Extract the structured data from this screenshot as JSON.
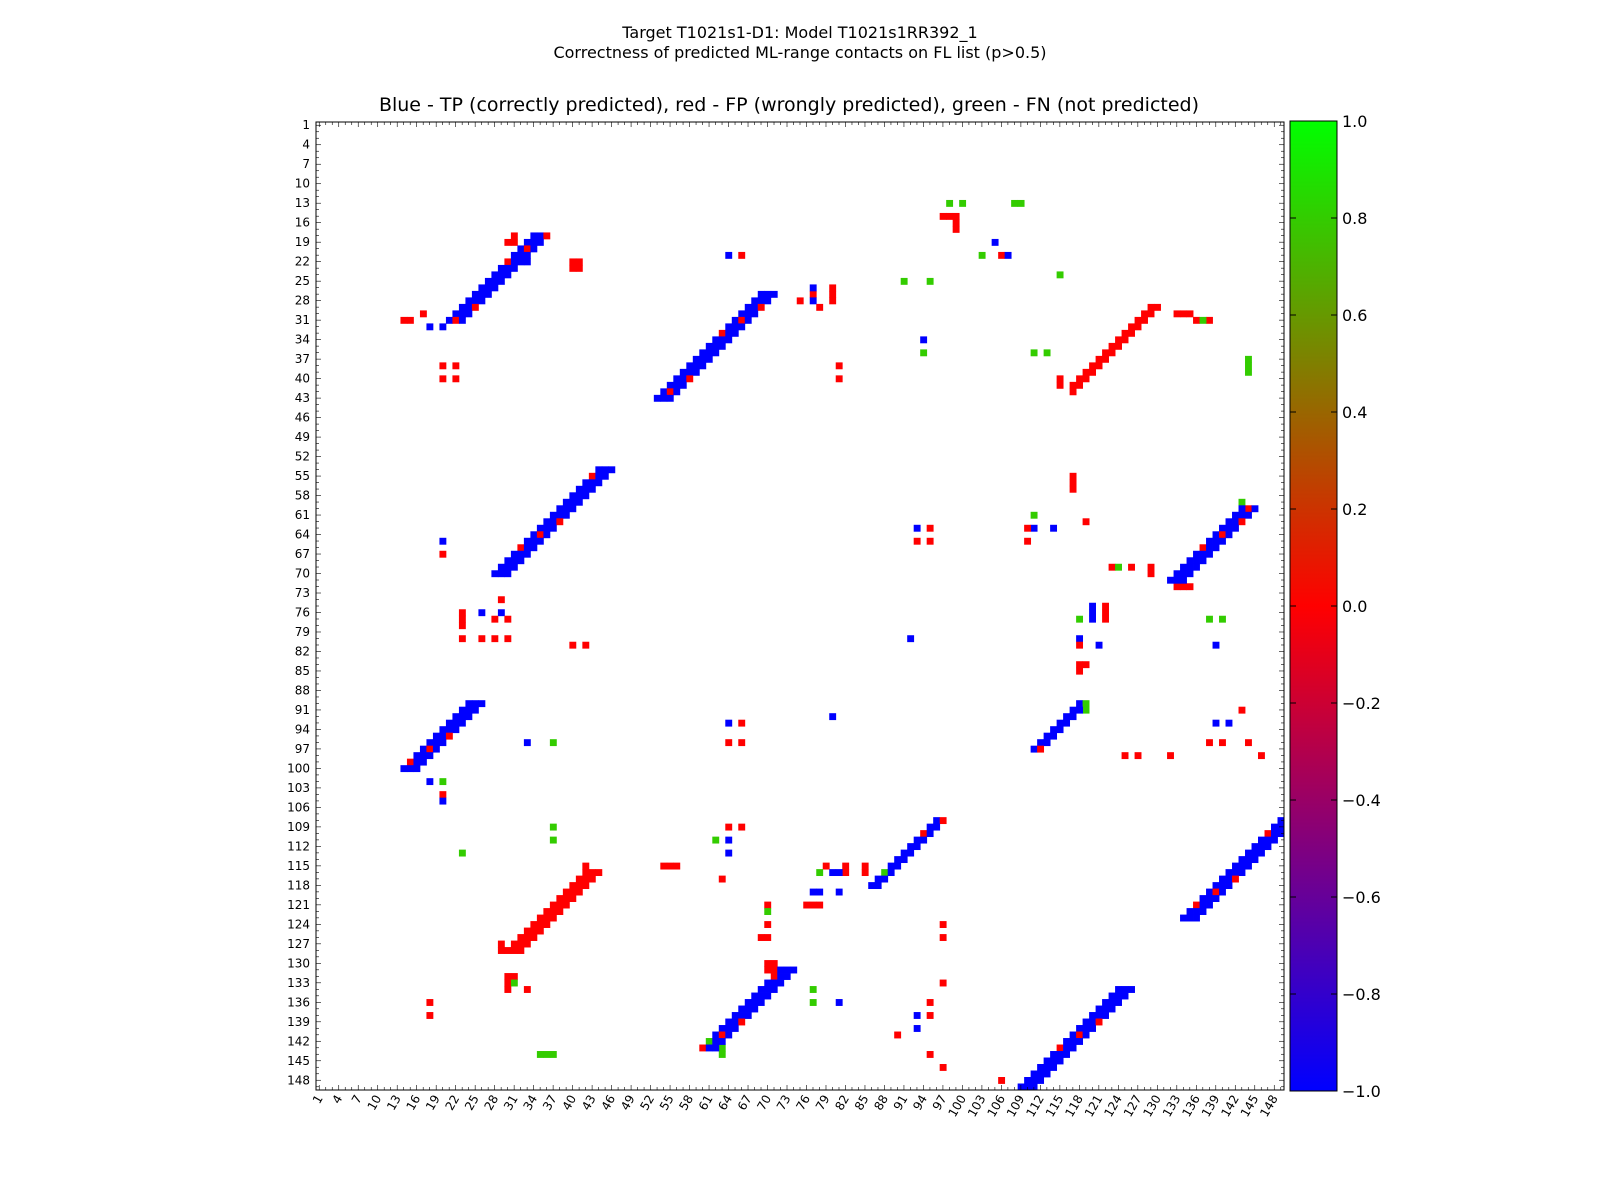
{
  "chart_data": {
    "type": "heatmap",
    "suptitle_line1": "Target T1021s1-D1: Model T1021s1RR392_1",
    "suptitle_line2": "Correctness of predicted ML-range contacts on FL list (p>0.5)",
    "title": "Blue - TP (correctly predicted), red - FP (wrongly predicted), green - FN (not predicted)",
    "n_residues": 149,
    "x_range": [
      1,
      149
    ],
    "y_range": [
      1,
      149
    ],
    "tick_values": [
      1,
      4,
      7,
      10,
      13,
      16,
      19,
      22,
      25,
      28,
      31,
      34,
      37,
      40,
      43,
      46,
      49,
      52,
      55,
      58,
      61,
      64,
      67,
      70,
      73,
      76,
      79,
      82,
      85,
      88,
      91,
      94,
      97,
      100,
      103,
      106,
      109,
      112,
      115,
      118,
      121,
      124,
      127,
      130,
      133,
      136,
      139,
      142,
      145,
      148
    ],
    "tick_labels": [
      "1",
      "4",
      "7",
      "10",
      "13",
      "16",
      "19",
      "22",
      "25",
      "28",
      "31",
      "34",
      "37",
      "40",
      "43",
      "46",
      "49",
      "52",
      "55",
      "58",
      "61",
      "64",
      "67",
      "70",
      "73",
      "76",
      "79",
      "82",
      "85",
      "88",
      "91",
      "94",
      "97",
      "100",
      "103",
      "106",
      "109",
      "112",
      "115",
      "118",
      "121",
      "124",
      "127",
      "130",
      "133",
      "136",
      "139",
      "142",
      "145",
      "148"
    ],
    "colorbar": {
      "range": [
        -1.0,
        1.0
      ],
      "ticks": [
        1.0,
        0.8,
        0.6,
        0.4,
        0.2,
        0.0,
        -0.2,
        -0.4,
        -0.6,
        -0.8,
        -1.0
      ],
      "tick_labels": [
        "1.0",
        "0.8",
        "0.6",
        "0.4",
        "0.2",
        "0.0",
        "−0.2",
        "−0.4",
        "−0.6",
        "−0.8",
        "−1.0"
      ],
      "colormap": [
        "#0000ff",
        "#ff0000",
        "#00ff00"
      ]
    },
    "categories": {
      "TP": {
        "value": -1.0,
        "color": "#0000ff"
      },
      "FP": {
        "value": 0.0,
        "color": "#ff0000"
      },
      "FN": {
        "value": 1.0,
        "color": "#33cc00"
      }
    },
    "diagonal_bands": [
      {
        "i_from": 18,
        "i_to": 31,
        "j_start": 34,
        "len": 3,
        "value": -1,
        "jitter_value": 0
      },
      {
        "i_from": 27,
        "i_to": 43,
        "j_start": 69,
        "len": 3,
        "value": -1,
        "jitter_value": 0
      },
      {
        "i_from": 29,
        "i_to": 41,
        "j_start": 129,
        "len": 2,
        "value": 0,
        "jitter_value": 0
      },
      {
        "i_from": 54,
        "i_to": 70,
        "j_start": 44,
        "len": 3,
        "value": -1,
        "jitter_value": 0
      },
      {
        "i_from": 60,
        "i_to": 71,
        "j_start": 143,
        "len": 3,
        "value": -1,
        "jitter_value": 0
      },
      {
        "i_from": 90,
        "i_to": 100,
        "j_start": 24,
        "len": 3,
        "value": -1,
        "jitter_value": 0
      },
      {
        "i_from": 90,
        "i_to": 97,
        "j_start": 118,
        "len": 2,
        "value": -1,
        "jitter_value": 0
      },
      {
        "i_from": 108,
        "i_to": 118,
        "j_start": 96,
        "len": 2,
        "value": -1,
        "jitter_value": 0
      },
      {
        "i_from": 107,
        "i_to": 123,
        "j_start": 150,
        "len": 3,
        "value": -1,
        "jitter_value": 0
      },
      {
        "i_from": 116,
        "i_to": 128,
        "j_start": 42,
        "len": 3,
        "value": 0,
        "jitter_value": 0
      },
      {
        "i_from": 131,
        "i_to": 143,
        "j_start": 72,
        "len": 3,
        "value": -1,
        "jitter_value": 0
      },
      {
        "i_from": 134,
        "i_to": 149,
        "j_start": 124,
        "len": 3,
        "value": -1,
        "jitter_value": 0
      }
    ],
    "cells": [
      [
        13,
        98,
        1
      ],
      [
        13,
        100,
        1
      ],
      [
        13,
        108,
        1
      ],
      [
        13,
        109,
        1
      ],
      [
        15,
        97,
        0
      ],
      [
        15,
        98,
        0
      ],
      [
        15,
        99,
        0
      ],
      [
        16,
        99,
        0
      ],
      [
        17,
        99,
        0
      ],
      [
        19,
        105,
        -1
      ],
      [
        19,
        31,
        0
      ],
      [
        18,
        31,
        0
      ],
      [
        19,
        30,
        0
      ],
      [
        21,
        64,
        -1
      ],
      [
        21,
        66,
        0
      ],
      [
        21,
        103,
        1
      ],
      [
        21,
        106,
        0
      ],
      [
        21,
        107,
        -1
      ],
      [
        22,
        33,
        -1
      ],
      [
        22,
        40,
        0
      ],
      [
        22,
        41,
        0
      ],
      [
        23,
        40,
        0
      ],
      [
        23,
        41,
        0
      ],
      [
        24,
        115,
        1
      ],
      [
        25,
        91,
        1
      ],
      [
        25,
        95,
        1
      ],
      [
        27,
        77,
        0
      ],
      [
        27,
        80,
        0
      ],
      [
        26,
        77,
        -1
      ],
      [
        26,
        80,
        0
      ],
      [
        28,
        75,
        0
      ],
      [
        28,
        77,
        -1
      ],
      [
        28,
        80,
        0
      ],
      [
        29,
        78,
        0
      ],
      [
        31,
        14,
        0
      ],
      [
        31,
        15,
        0
      ],
      [
        30,
        17,
        0
      ],
      [
        32,
        18,
        -1
      ],
      [
        32,
        20,
        -1
      ],
      [
        30,
        133,
        0
      ],
      [
        30,
        134,
        0
      ],
      [
        30,
        135,
        0
      ],
      [
        31,
        136,
        0
      ],
      [
        31,
        138,
        0
      ],
      [
        31,
        137,
        1
      ],
      [
        34,
        94,
        -1
      ],
      [
        36,
        94,
        1
      ],
      [
        36,
        111,
        1
      ],
      [
        36,
        113,
        1
      ],
      [
        37,
        144,
        1
      ],
      [
        38,
        144,
        1
      ],
      [
        39,
        144,
        1
      ],
      [
        38,
        20,
        0
      ],
      [
        38,
        22,
        0
      ],
      [
        40,
        20,
        0
      ],
      [
        40,
        22,
        0
      ],
      [
        38,
        81,
        0
      ],
      [
        40,
        81,
        0
      ],
      [
        40,
        115,
        0
      ],
      [
        41,
        115,
        0
      ],
      [
        42,
        117,
        0
      ],
      [
        55,
        117,
        0
      ],
      [
        56,
        117,
        0
      ],
      [
        57,
        117,
        0
      ],
      [
        59,
        143,
        1
      ],
      [
        60,
        144,
        0
      ],
      [
        61,
        111,
        1
      ],
      [
        62,
        119,
        0
      ],
      [
        63,
        93,
        -1
      ],
      [
        63,
        95,
        0
      ],
      [
        63,
        111,
        -1
      ],
      [
        63,
        114,
        -1
      ],
      [
        63,
        110,
        0
      ],
      [
        65,
        93,
        0
      ],
      [
        65,
        95,
        0
      ],
      [
        65,
        110,
        0
      ],
      [
        65,
        20,
        -1
      ],
      [
        67,
        20,
        0
      ],
      [
        69,
        126,
        0
      ],
      [
        69,
        123,
        0
      ],
      [
        69,
        124,
        1
      ],
      [
        69,
        129,
        0
      ],
      [
        70,
        129,
        0
      ],
      [
        72,
        133,
        0
      ],
      [
        72,
        134,
        0
      ],
      [
        72,
        135,
        0
      ],
      [
        74,
        29,
        0
      ],
      [
        76,
        23,
        0
      ],
      [
        76,
        26,
        -1
      ],
      [
        76,
        29,
        -1
      ],
      [
        77,
        23,
        0
      ],
      [
        77,
        28,
        0
      ],
      [
        77,
        30,
        0
      ],
      [
        78,
        23,
        0
      ],
      [
        75,
        120,
        -1
      ],
      [
        76,
        120,
        -1
      ],
      [
        77,
        120,
        -1
      ],
      [
        75,
        122,
        0
      ],
      [
        76,
        122,
        0
      ],
      [
        77,
        122,
        0
      ],
      [
        77,
        118,
        1
      ],
      [
        77,
        138,
        1
      ],
      [
        77,
        140,
        1
      ],
      [
        80,
        23,
        0
      ],
      [
        80,
        26,
        0
      ],
      [
        80,
        28,
        0
      ],
      [
        80,
        30,
        0
      ],
      [
        81,
        40,
        0
      ],
      [
        81,
        42,
        0
      ],
      [
        80,
        92,
        -1
      ],
      [
        80,
        118,
        -1
      ],
      [
        81,
        118,
        0
      ],
      [
        81,
        121,
        -1
      ],
      [
        81,
        139,
        -1
      ],
      [
        84,
        118,
        0
      ],
      [
        84,
        119,
        0
      ],
      [
        85,
        118,
        0
      ],
      [
        90,
        118,
        -1
      ],
      [
        90,
        119,
        1
      ],
      [
        91,
        119,
        1
      ],
      [
        92,
        80,
        -1
      ],
      [
        91,
        143,
        0
      ],
      [
        93,
        64,
        -1
      ],
      [
        93,
        66,
        0
      ],
      [
        93,
        139,
        -1
      ],
      [
        93,
        141,
        -1
      ],
      [
        96,
        33,
        -1
      ],
      [
        96,
        37,
        1
      ],
      [
        96,
        64,
        0
      ],
      [
        96,
        66,
        0
      ],
      [
        96,
        138,
        0
      ],
      [
        96,
        140,
        0
      ],
      [
        96,
        144,
        0
      ],
      [
        98,
        125,
        0
      ],
      [
        98,
        127,
        0
      ],
      [
        98,
        132,
        0
      ],
      [
        98,
        146,
        0
      ],
      [
        102,
        18,
        -1
      ],
      [
        102,
        20,
        1
      ],
      [
        104,
        20,
        0
      ],
      [
        105,
        20,
        -1
      ],
      [
        109,
        37,
        1
      ],
      [
        109,
        64,
        0
      ],
      [
        109,
        66,
        0
      ],
      [
        111,
        37,
        1
      ],
      [
        111,
        62,
        1
      ],
      [
        111,
        64,
        -1
      ],
      [
        113,
        23,
        1
      ],
      [
        113,
        64,
        -1
      ],
      [
        115,
        54,
        0
      ],
      [
        115,
        55,
        0
      ],
      [
        115,
        56,
        0
      ],
      [
        115,
        79,
        0
      ],
      [
        115,
        82,
        0
      ],
      [
        115,
        85,
        0
      ],
      [
        116,
        82,
        0
      ],
      [
        116,
        85,
        0
      ],
      [
        116,
        88,
        1
      ],
      [
        116,
        78,
        1
      ],
      [
        116,
        80,
        -1
      ],
      [
        116,
        81,
        -1
      ],
      [
        117,
        63,
        0
      ],
      [
        115,
        42,
        0
      ],
      [
        117,
        42,
        0
      ],
      [
        117,
        43,
        0
      ],
      [
        119,
        77,
        -1
      ],
      [
        119,
        78,
        -1
      ],
      [
        119,
        81,
        -1
      ],
      [
        121,
        76,
        0
      ],
      [
        121,
        77,
        0
      ],
      [
        121,
        78,
        0
      ],
      [
        121,
        70,
        0
      ],
      [
        122,
        70,
        1
      ],
      [
        124,
        70,
        0
      ],
      [
        124,
        97,
        0
      ],
      [
        126,
        69,
        0
      ],
      [
        126,
        70,
        0
      ],
      [
        126,
        97,
        0
      ],
      [
        128,
        29,
        0
      ],
      [
        128,
        30,
        0
      ],
      [
        128,
        31,
        0
      ],
      [
        127,
        29,
        0
      ],
      [
        130,
        70,
        0
      ],
      [
        131,
        70,
        0
      ],
      [
        131,
        71,
        0
      ],
      [
        130,
        71,
        0
      ],
      [
        132,
        71,
        0
      ],
      [
        132,
        30,
        0
      ],
      [
        132,
        31,
        0
      ],
      [
        133,
        30,
        0
      ],
      [
        134,
        30,
        0
      ],
      [
        133,
        31,
        1
      ],
      [
        134,
        33,
        0
      ],
      [
        133,
        97,
        0
      ],
      [
        134,
        77,
        1
      ],
      [
        136,
        77,
        1
      ],
      [
        136,
        81,
        -1
      ],
      [
        136,
        95,
        0
      ],
      [
        136,
        18,
        0
      ],
      [
        138,
        18,
        0
      ],
      [
        138,
        93,
        -1
      ],
      [
        138,
        95,
        0
      ],
      [
        140,
        93,
        -1
      ],
      [
        141,
        90,
        0
      ],
      [
        142,
        61,
        1
      ],
      [
        143,
        63,
        1
      ],
      [
        144,
        63,
        1
      ],
      [
        144,
        35,
        1
      ],
      [
        144,
        36,
        1
      ],
      [
        144,
        37,
        1
      ],
      [
        144,
        95,
        0
      ],
      [
        146,
        97,
        0
      ],
      [
        148,
        106,
        0
      ]
    ]
  }
}
